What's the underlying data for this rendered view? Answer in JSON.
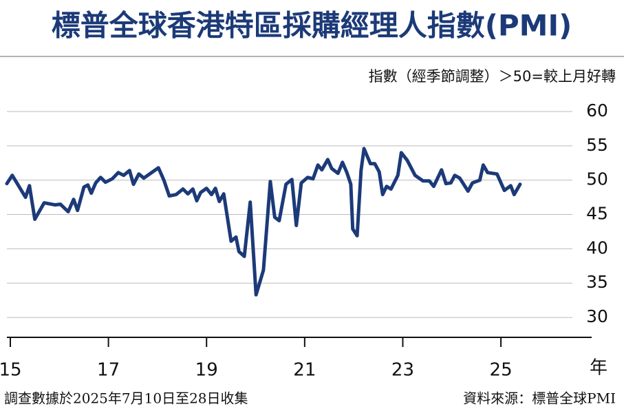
{
  "chart_data": {
    "type": "line",
    "title": "標普全球香港特區採購經理人指數(PMI)",
    "subtitle": "指數（經季節調整）＞50=較上月好轉",
    "x_unit": "年",
    "footnote": "調查數據於2025年7月10日至28日收集",
    "source": "資料來源：標普全球PMI",
    "color": "#1c3a78",
    "grid": true,
    "x": [
      2014.93,
      2015.04,
      2015.15,
      2015.31,
      2015.39,
      2015.5,
      2015.69,
      2015.91,
      2016.02,
      2016.18,
      2016.29,
      2016.37,
      2016.5,
      2016.58,
      2016.65,
      2016.74,
      2016.84,
      2016.94,
      2017.08,
      2017.2,
      2017.31,
      2017.43,
      2017.51,
      2017.62,
      2017.72,
      2017.88,
      2018.02,
      2018.13,
      2018.24,
      2018.38,
      2018.52,
      2018.62,
      2018.72,
      2018.8,
      2018.88,
      2019.0,
      2019.1,
      2019.18,
      2019.26,
      2019.35,
      2019.5,
      2019.6,
      2019.66,
      2019.77,
      2019.89,
      2020.01,
      2020.16,
      2020.3,
      2020.39,
      2020.48,
      2020.62,
      2020.74,
      2020.83,
      2020.93,
      2021.06,
      2021.17,
      2021.27,
      2021.35,
      2021.47,
      2021.55,
      2021.68,
      2021.77,
      2021.86,
      2021.94,
      2021.98,
      2022.07,
      2022.15,
      2022.21,
      2022.34,
      2022.43,
      2022.52,
      2022.59,
      2022.67,
      2022.76,
      2022.9,
      2022.97,
      2023.09,
      2023.25,
      2023.41,
      2023.54,
      2023.63,
      2023.79,
      2023.88,
      2023.98,
      2024.06,
      2024.16,
      2024.33,
      2024.42,
      2024.57,
      2024.64,
      2024.73,
      2024.92,
      2025.07,
      2025.2,
      2025.27,
      2025.39
    ],
    "values": [
      49.5,
      50.7,
      49.4,
      47.5,
      49.2,
      44.3,
      46.7,
      46.4,
      46.5,
      45.4,
      47.2,
      45.6,
      49.0,
      49.3,
      48.1,
      49.6,
      50.4,
      49.7,
      50.2,
      51.1,
      50.7,
      51.4,
      49.4,
      50.9,
      50.3,
      51.1,
      51.8,
      50.0,
      47.7,
      47.9,
      48.7,
      48.0,
      48.7,
      47.0,
      48.2,
      48.8,
      47.9,
      48.8,
      46.9,
      48.0,
      41.1,
      41.7,
      39.6,
      38.9,
      46.8,
      33.3,
      36.9,
      49.8,
      44.6,
      44.1,
      49.4,
      50.1,
      43.4,
      49.6,
      50.4,
      50.2,
      52.2,
      51.5,
      53.0,
      51.7,
      51.0,
      52.6,
      51.1,
      49.4,
      42.9,
      41.9,
      51.4,
      54.6,
      52.4,
      52.4,
      51.2,
      47.9,
      49.1,
      48.7,
      50.7,
      54.0,
      52.9,
      50.7,
      49.9,
      49.9,
      49.1,
      51.5,
      49.5,
      49.6,
      50.7,
      50.3,
      48.4,
      49.6,
      50.0,
      52.2,
      51.1,
      50.9,
      48.5,
      49.2,
      47.9,
      49.4
    ],
    "xlim": [
      2014.93,
      2026.85
    ],
    "xticks": [
      {
        "value": 2015,
        "label": "15"
      },
      {
        "value": 2017,
        "label": "17"
      },
      {
        "value": 2019,
        "label": "19"
      },
      {
        "value": 2021,
        "label": "21"
      },
      {
        "value": 2023,
        "label": "23"
      },
      {
        "value": 2025,
        "label": "25"
      }
    ],
    "ylim": [
      27.1,
      60.7
    ],
    "yticks": [
      30,
      35,
      40,
      45,
      50,
      55,
      60
    ]
  }
}
